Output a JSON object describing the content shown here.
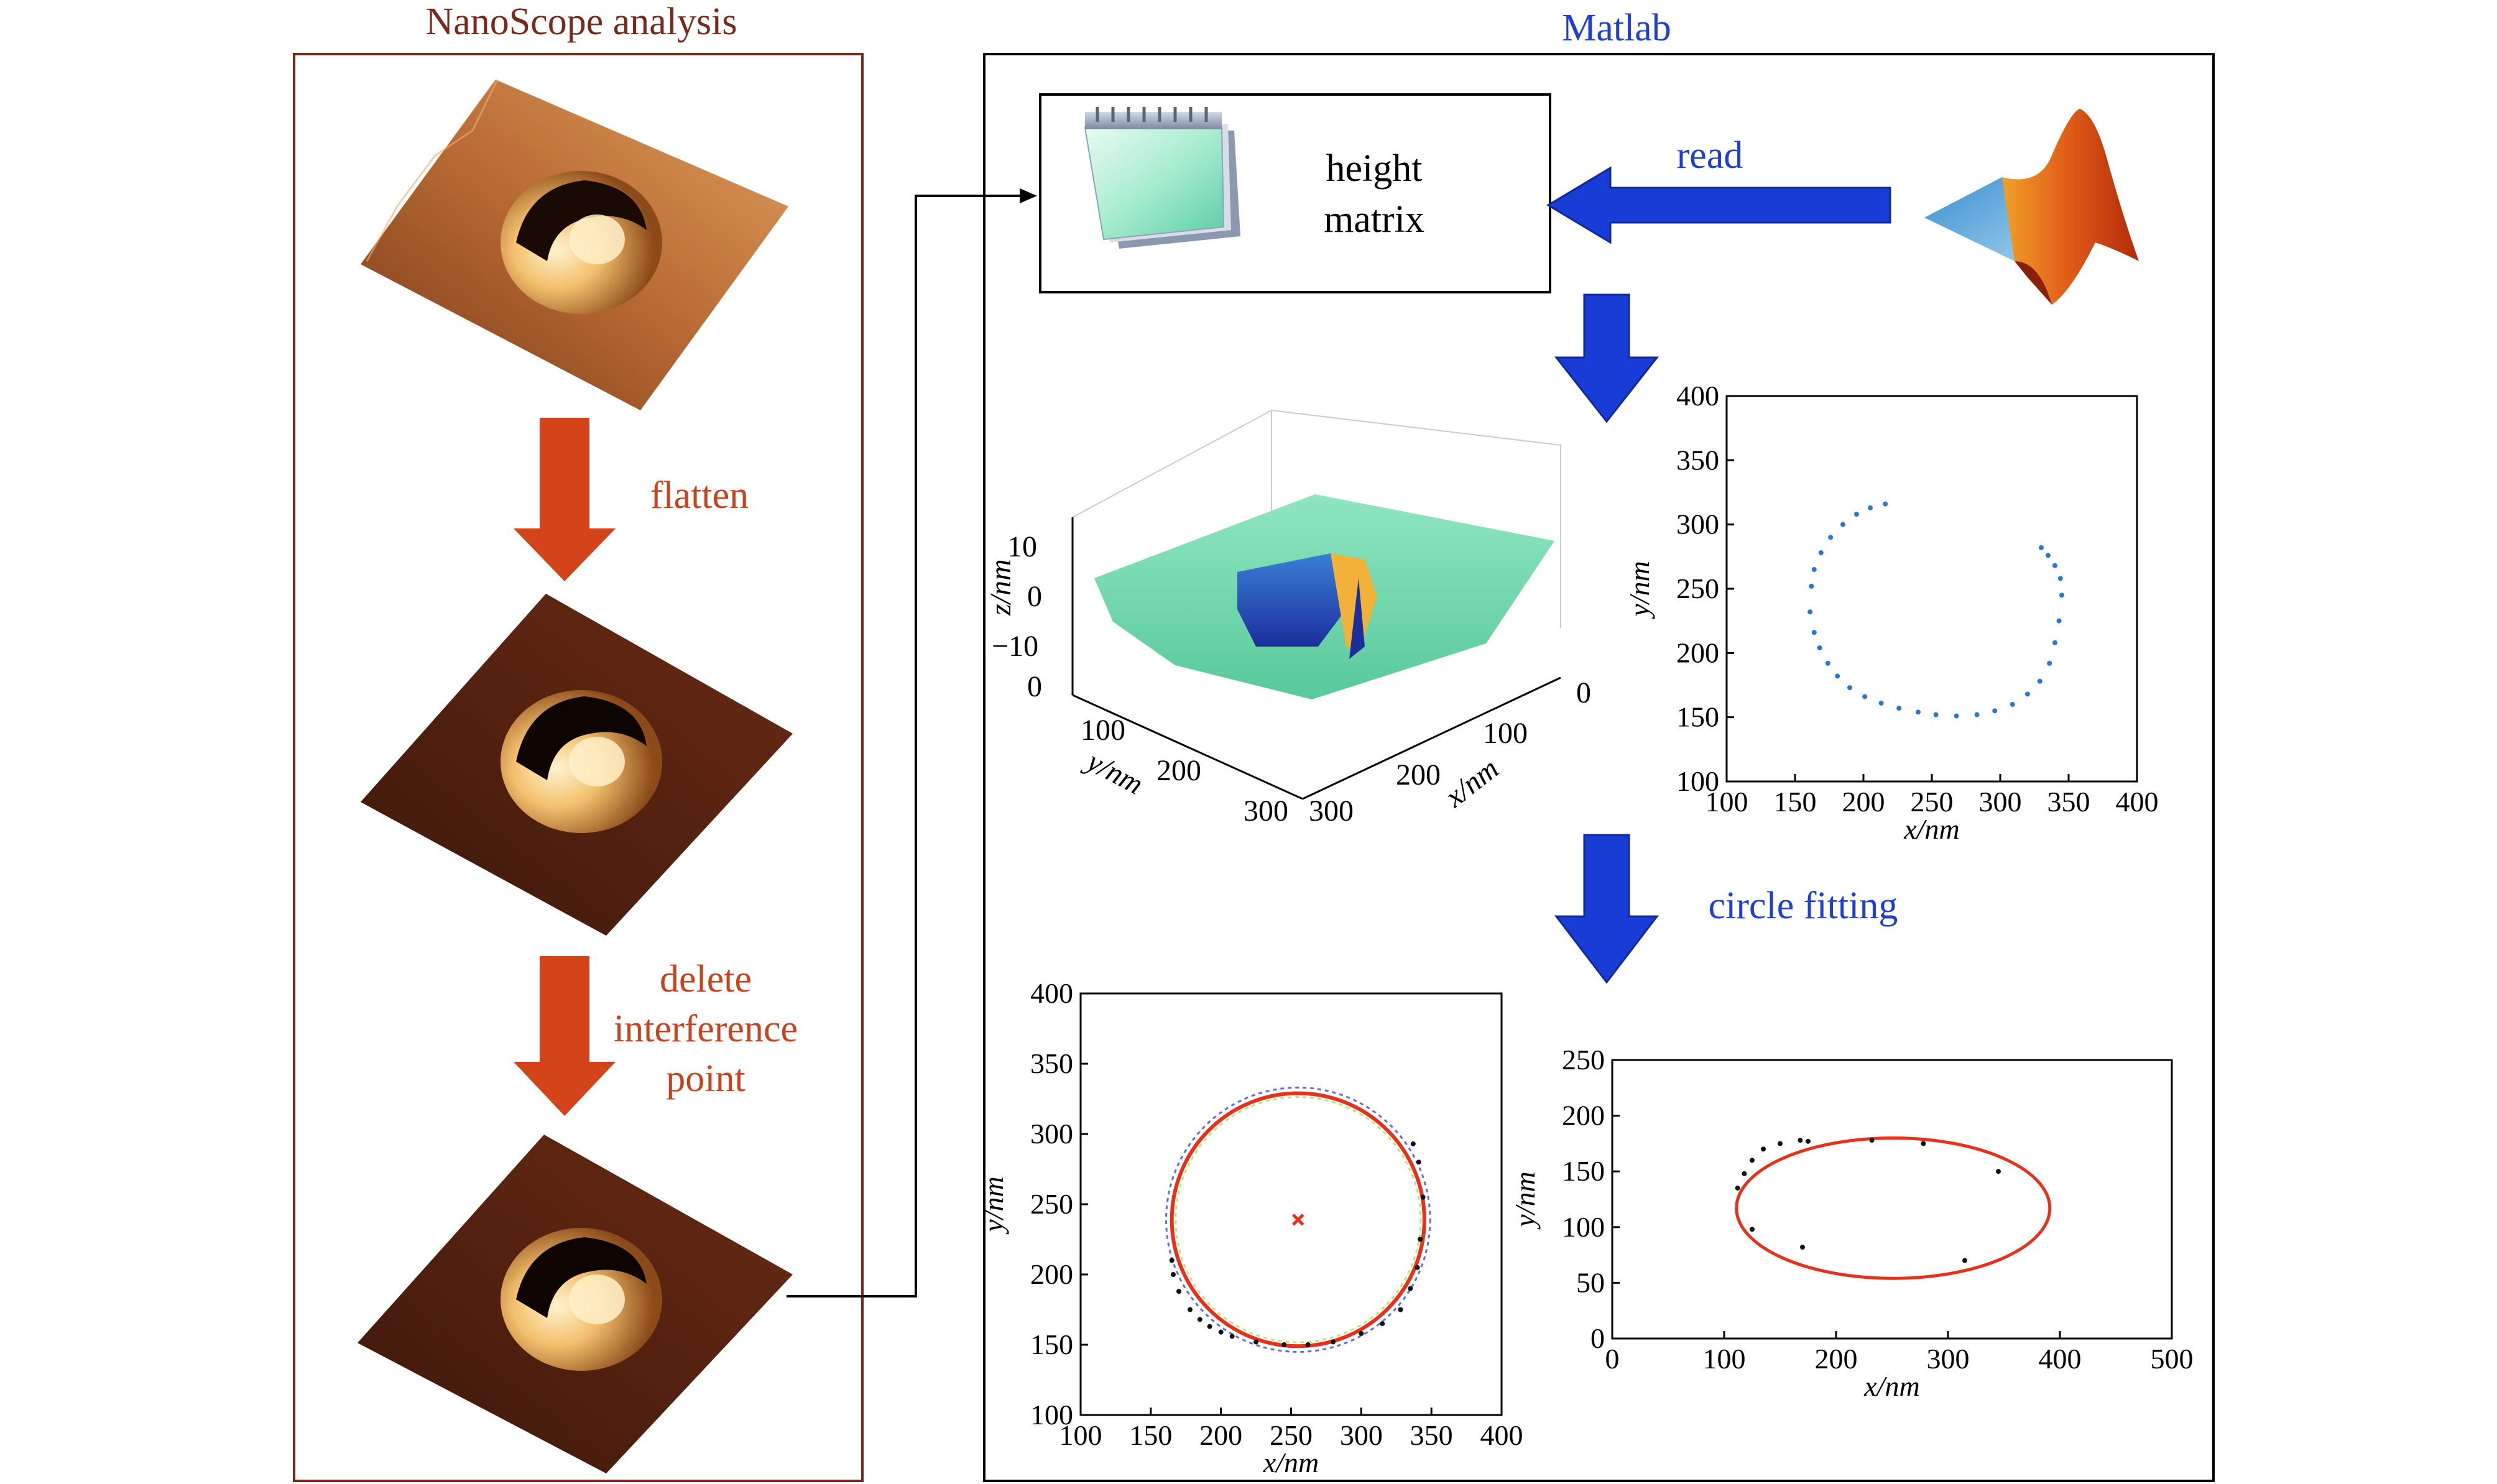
{
  "panels": {
    "nanoscope_title": "NanoScope analysis",
    "matlab_title": "Matlab"
  },
  "steps": {
    "flatten": "flatten",
    "delete_line1": "delete",
    "delete_line2": "interference",
    "delete_line3": "point",
    "read": "read",
    "circle_fitting": "circle fitting"
  },
  "height_matrix": {
    "line1": "height",
    "line2": "matrix"
  },
  "colors": {
    "nanoscope_border": "#7a2a1a",
    "red_arrow": "#d4441a",
    "blue_arrow": "#1a3cd6",
    "blue_label": "#1f3fd6",
    "fit_circle": "#e8311a",
    "edge_points": "#2a78d0"
  },
  "icons": [
    "notepad-icon",
    "matlab-logo-icon"
  ],
  "chart_data": [
    {
      "type": "surface",
      "zlabel": "z/nm",
      "xlabel": "x/nm",
      "ylabel": "y/nm",
      "zticks": [
        "10",
        "0",
        "−10"
      ],
      "yticks": [
        "0",
        "100",
        "200",
        "300"
      ],
      "xticks": [
        "0",
        "100",
        "200",
        "300"
      ]
    },
    {
      "type": "scatter",
      "xlabel": "x/nm",
      "ylabel": "y/nm",
      "xlim": [
        100,
        400
      ],
      "ylim": [
        100,
        400
      ],
      "xticks": [
        100,
        150,
        200,
        250,
        300,
        350,
        400
      ],
      "yticks": [
        100,
        150,
        200,
        250,
        300,
        350,
        400
      ],
      "series": [
        {
          "x": [
            216,
            205,
            195,
            185,
            176,
            169,
            164,
            162,
            161,
            164,
            168,
            174,
            181,
            190,
            201,
            213,
            226,
            240,
            253,
            268,
            283,
            296,
            309,
            320,
            329,
            336,
            340,
            343,
            345,
            344,
            340,
            335,
            330
          ],
          "y": [
            316,
            313,
            308,
            300,
            290,
            278,
            265,
            252,
            232,
            216,
            204,
            192,
            182,
            173,
            166,
            161,
            157,
            154,
            152,
            151,
            152,
            155,
            160,
            168,
            178,
            192,
            208,
            225,
            245,
            258,
            268,
            276,
            282
          ]
        }
      ]
    },
    {
      "type": "scatter",
      "xlabel": "x/nm",
      "ylabel": "y/nm",
      "xlim": [
        100,
        400
      ],
      "ylim": [
        100,
        400
      ],
      "xticks": [
        100,
        150,
        200,
        250,
        300,
        350,
        400
      ],
      "yticks": [
        100,
        150,
        200,
        250,
        300,
        350,
        400
      ],
      "fit": {
        "center": [
          255,
          239
        ],
        "radius": 90
      },
      "series": [
        {
          "x": [
            165,
            166,
            170,
            178,
            185,
            192,
            200,
            208,
            225,
            245,
            262,
            280,
            300,
            315,
            328,
            335,
            340,
            342,
            344,
            341,
            337
          ],
          "y": [
            210,
            200,
            188,
            175,
            168,
            163,
            159,
            156,
            152,
            150,
            150,
            152,
            158,
            165,
            175,
            190,
            205,
            225,
            255,
            280,
            293
          ]
        }
      ]
    },
    {
      "type": "scatter",
      "xlabel": "x/nm",
      "ylabel": "y/nm",
      "xlim": [
        0,
        500
      ],
      "ylim": [
        0,
        250
      ],
      "xticks": [
        0,
        100,
        200,
        300,
        400,
        500
      ],
      "yticks": [
        0,
        50,
        100,
        150,
        200,
        250
      ],
      "fit": {
        "center": [
          251,
          117
        ],
        "rx": 140,
        "ry": 63
      },
      "series": [
        {
          "x": [
            112,
            118,
            125,
            135,
            150,
            168,
            175,
            232,
            278,
            315,
            345,
            125,
            170
          ],
          "y": [
            135,
            148,
            160,
            170,
            175,
            178,
            177,
            178,
            175,
            70,
            150,
            98,
            82
          ]
        }
      ]
    }
  ]
}
